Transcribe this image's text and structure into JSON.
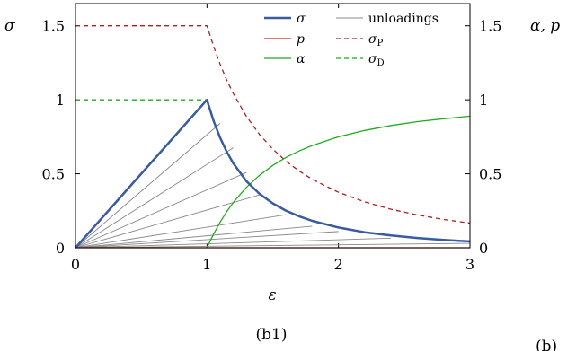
{
  "chart_data": {
    "type": "line",
    "caption": "(b1)",
    "corner_label": "(b)",
    "xlabel": "ε",
    "ylabel_left": "σ",
    "ylabel_right": "α, p",
    "xlim": [
      0,
      3
    ],
    "ylim": [
      0,
      1.65
    ],
    "x_ticks": [
      0,
      1,
      2,
      3
    ],
    "x_tick_labels": [
      "0",
      "1",
      "2",
      "3"
    ],
    "y_ticks": [
      0,
      0.5,
      1,
      1.5
    ],
    "y_tick_labels": [
      "0",
      "0.5",
      "1",
      "1.5"
    ],
    "legend_position": "top-right",
    "legend": [
      {
        "key": "sigma",
        "label": "σ"
      },
      {
        "key": "unloadings",
        "label": "unloadings"
      },
      {
        "key": "p",
        "label": "p"
      },
      {
        "key": "sigmaP",
        "label": "σ",
        "sub": "P"
      },
      {
        "key": "alpha",
        "label": "α"
      },
      {
        "key": "sigmaD",
        "label": "σ",
        "sub": "D"
      }
    ],
    "series": [
      {
        "key": "sigma",
        "color": "#3a5ba0",
        "dash": "solid",
        "x": [
          0,
          1,
          1.05,
          1.1,
          1.15,
          1.2,
          1.3,
          1.4,
          1.5,
          1.6,
          1.7,
          1.8,
          2,
          2.2,
          2.4,
          2.6,
          2.8,
          3
        ],
        "y": [
          0,
          1,
          0.857,
          0.743,
          0.649,
          0.571,
          0.45,
          0.364,
          0.3,
          0.251,
          0.213,
          0.182,
          0.137,
          0.105,
          0.083,
          0.066,
          0.053,
          0.043
        ]
      },
      {
        "key": "p",
        "color": "#cc2020",
        "dash": "solid",
        "x": [
          0,
          3
        ],
        "y": [
          0,
          0
        ]
      },
      {
        "key": "alpha",
        "color": "#22aa22",
        "dash": "solid",
        "x": [
          1,
          1.05,
          1.1,
          1.15,
          1.2,
          1.3,
          1.4,
          1.5,
          1.6,
          1.7,
          1.8,
          2,
          2.2,
          2.4,
          2.6,
          2.8,
          3
        ],
        "y": [
          0,
          0.093,
          0.174,
          0.244,
          0.306,
          0.408,
          0.49,
          0.556,
          0.61,
          0.654,
          0.691,
          0.75,
          0.793,
          0.826,
          0.852,
          0.872,
          0.889
        ]
      },
      {
        "key": "sigmaP",
        "color": "#aa2020",
        "dash": "dashed",
        "x": [
          0,
          1,
          1.05,
          1.1,
          1.15,
          1.2,
          1.3,
          1.4,
          1.5,
          1.6,
          1.7,
          1.8,
          2,
          2.2,
          2.4,
          2.6,
          2.8,
          3
        ],
        "y": [
          1.5,
          1.5,
          1.361,
          1.24,
          1.134,
          1.042,
          0.888,
          0.765,
          0.667,
          0.586,
          0.519,
          0.463,
          0.375,
          0.31,
          0.26,
          0.222,
          0.191,
          0.167
        ]
      },
      {
        "key": "sigmaD",
        "color": "#22aa22",
        "dash": "dashed",
        "x": [
          0,
          1
        ],
        "y": [
          1,
          1
        ]
      }
    ],
    "unloadings": {
      "color": "#888888",
      "peaks": [
        {
          "x": 1.1,
          "y": 0.84
        },
        {
          "x": 1.2,
          "y": 0.676
        },
        {
          "x": 1.3,
          "y": 0.509
        },
        {
          "x": 1.4,
          "y": 0.357
        },
        {
          "x": 1.6,
          "y": 0.223
        },
        {
          "x": 1.8,
          "y": 0.146
        },
        {
          "x": 2,
          "y": 0.11
        },
        {
          "x": 2.4,
          "y": 0.065
        },
        {
          "x": 3,
          "y": 0.03
        }
      ]
    }
  }
}
